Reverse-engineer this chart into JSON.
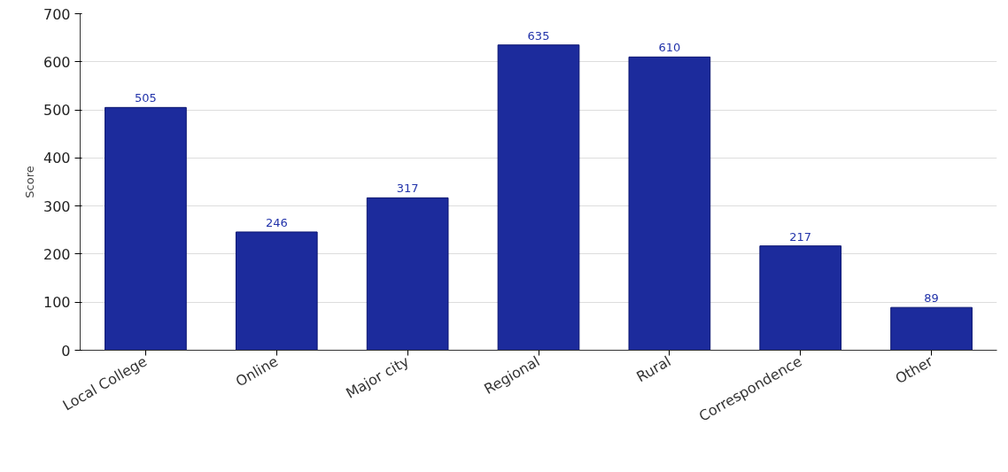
{
  "chart_data": {
    "type": "bar",
    "ylabel": "Score",
    "categories": [
      "Local College",
      "Online",
      "Major city",
      "Regional",
      "Rural",
      "Correspondence",
      "Other"
    ],
    "values": [
      505,
      246,
      317,
      635,
      610,
      217,
      89
    ],
    "color": "#1c2b9c",
    "ylim": [
      0,
      700
    ],
    "yticks": [
      0,
      100,
      200,
      300,
      400,
      500,
      600,
      700
    ],
    "grid": "y",
    "data_labels": true
  }
}
